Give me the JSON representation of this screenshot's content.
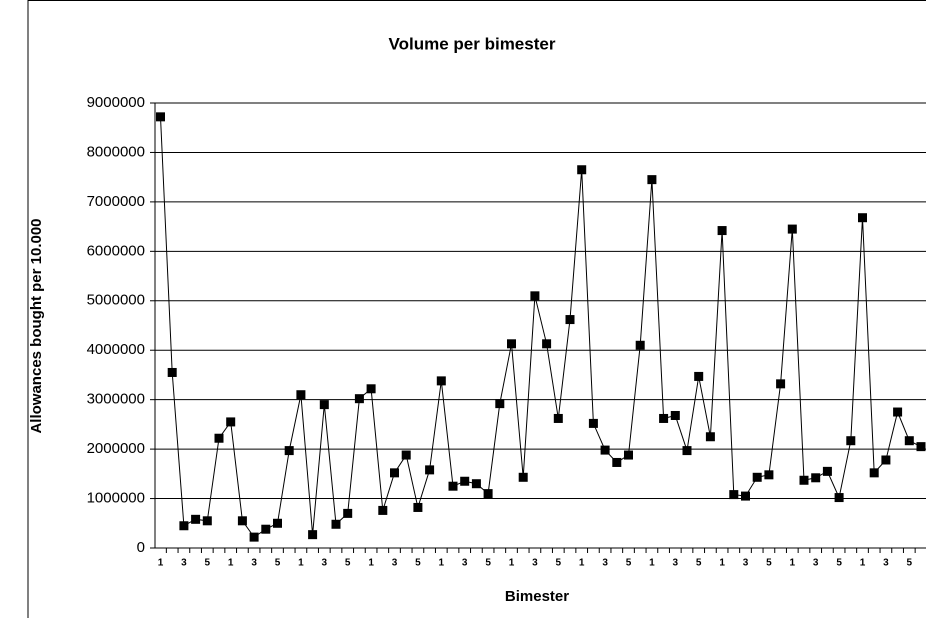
{
  "chart_data": {
    "type": "line",
    "title": "Volume per bimester",
    "x_label": "Bimester",
    "y_label": "Allowances bought per 10.000",
    "categories": [
      "1",
      null,
      "3",
      null,
      "5",
      null,
      "1",
      null,
      "3",
      null,
      "5",
      null,
      "1",
      null,
      "3",
      null,
      "5",
      null,
      "1",
      null,
      "3",
      null,
      "5",
      null,
      "1",
      null,
      "3",
      null,
      "5",
      null,
      "1",
      null,
      "3",
      null,
      "5",
      null,
      "1",
      null,
      "3",
      null,
      "5",
      null,
      "1",
      null,
      "3",
      null,
      "5",
      null,
      "1",
      null,
      "3",
      null,
      "5",
      null,
      "1",
      null,
      "3",
      null,
      "5",
      null,
      "1",
      null,
      "3",
      null,
      "5",
      null
    ],
    "series": [
      {
        "name": "Volume",
        "color": "#000000",
        "values": [
          8720000,
          3550000,
          450000,
          580000,
          550000,
          2220000,
          2550000,
          550000,
          220000,
          380000,
          500000,
          1970000,
          3100000,
          270000,
          2900000,
          480000,
          700000,
          3020000,
          3220000,
          760000,
          1520000,
          1880000,
          820000,
          1580000,
          3380000,
          1250000,
          1350000,
          1300000,
          1100000,
          2920000,
          4130000,
          1430000,
          5100000,
          4130000,
          2620000,
          4620000,
          7650000,
          2520000,
          1980000,
          1730000,
          1880000,
          4100000,
          7450000,
          2620000,
          2680000,
          1970000,
          3470000,
          2250000,
          6420000,
          1080000,
          1050000,
          1430000,
          1480000,
          3320000,
          6450000,
          1370000,
          1420000,
          1550000,
          1020000,
          2170000,
          6680000,
          1520000,
          1780000,
          2750000,
          2170000,
          2050000
        ]
      }
    ],
    "ylim": [
      0,
      9000000
    ],
    "yticks": [
      0,
      1000000,
      2000000,
      3000000,
      4000000,
      5000000,
      6000000,
      7000000,
      8000000,
      9000000
    ],
    "grid": true
  }
}
